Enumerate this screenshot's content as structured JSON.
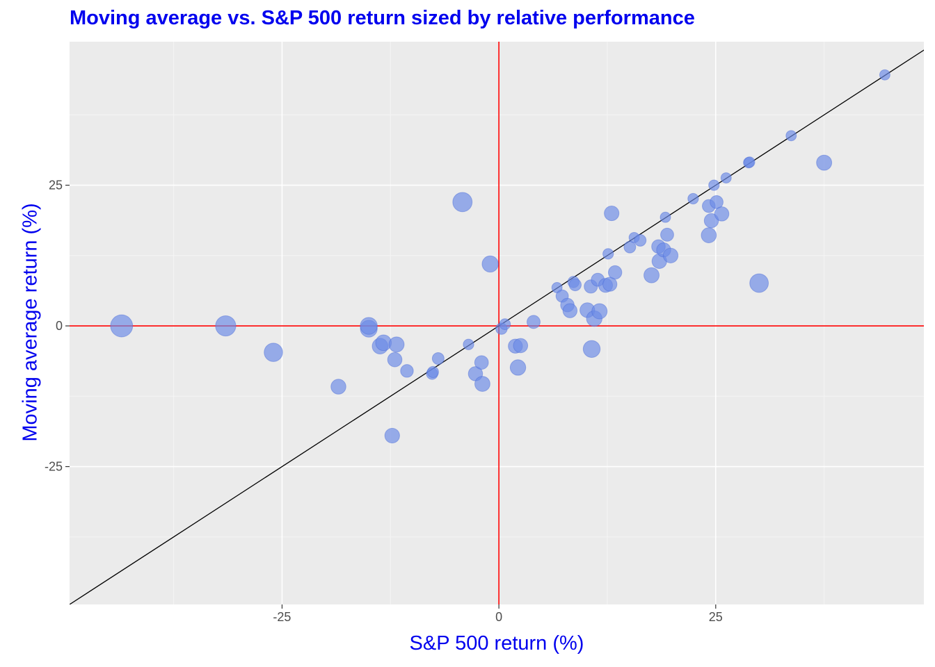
{
  "chart_data": {
    "type": "scatter",
    "title": "Moving average vs. S&P 500 return sized by relative performance",
    "xlabel": "S&P 500 return (%)",
    "ylabel": "Moving average return (%)",
    "xlim": [
      -49.5,
      49
    ],
    "ylim": [
      -49.5,
      50.5
    ],
    "x_ticks": [
      -25,
      0,
      25
    ],
    "y_ticks": [
      -25,
      0,
      25
    ],
    "x_tick_labels": [
      "-25",
      "0",
      "25"
    ],
    "y_tick_labels": [
      "-25",
      "0",
      "25"
    ],
    "grid": true,
    "reference_lines": {
      "vline_x": 0,
      "hline_y": 0,
      "diagonal": "y = x",
      "axis_line_color": "#ff0000",
      "diagonal_color": "#000000"
    },
    "point_color": "#6b8be6",
    "point_stroke": "#4a6bd8",
    "size_note": "size scales with |x - y|",
    "points": [
      {
        "x": -43.5,
        "y": 0.0
      },
      {
        "x": -31.5,
        "y": 0.0
      },
      {
        "x": -26.0,
        "y": -4.7
      },
      {
        "x": -18.5,
        "y": -10.8
      },
      {
        "x": -15.0,
        "y": -0.5
      },
      {
        "x": -15.0,
        "y": 0.0
      },
      {
        "x": -13.7,
        "y": -3.6
      },
      {
        "x": -13.3,
        "y": -3.0
      },
      {
        "x": -12.3,
        "y": -19.5
      },
      {
        "x": -12.0,
        "y": -6.0
      },
      {
        "x": -11.8,
        "y": -3.3
      },
      {
        "x": -10.6,
        "y": -8.0
      },
      {
        "x": -7.7,
        "y": -8.5
      },
      {
        "x": -7.6,
        "y": -8.2
      },
      {
        "x": -7.0,
        "y": -5.8
      },
      {
        "x": -4.2,
        "y": 22.0
      },
      {
        "x": -3.5,
        "y": -3.3
      },
      {
        "x": -2.7,
        "y": -8.5
      },
      {
        "x": -2.0,
        "y": -6.5
      },
      {
        "x": -1.9,
        "y": -10.3
      },
      {
        "x": -1.0,
        "y": 11.0
      },
      {
        "x": 0.3,
        "y": -0.5
      },
      {
        "x": 0.7,
        "y": 0.3
      },
      {
        "x": 1.9,
        "y": -3.6
      },
      {
        "x": 2.2,
        "y": -7.4
      },
      {
        "x": 2.5,
        "y": -3.5
      },
      {
        "x": 4.0,
        "y": 0.7
      },
      {
        "x": 6.7,
        "y": 6.8
      },
      {
        "x": 7.3,
        "y": 5.3
      },
      {
        "x": 7.9,
        "y": 3.7
      },
      {
        "x": 8.2,
        "y": 2.7
      },
      {
        "x": 8.6,
        "y": 7.8
      },
      {
        "x": 8.8,
        "y": 7.3
      },
      {
        "x": 10.2,
        "y": 2.8
      },
      {
        "x": 10.6,
        "y": 7.0
      },
      {
        "x": 10.7,
        "y": -4.1
      },
      {
        "x": 11.0,
        "y": 1.3
      },
      {
        "x": 11.4,
        "y": 8.2
      },
      {
        "x": 11.6,
        "y": 2.6
      },
      {
        "x": 12.3,
        "y": 7.2
      },
      {
        "x": 12.6,
        "y": 12.8
      },
      {
        "x": 12.8,
        "y": 7.4
      },
      {
        "x": 13.0,
        "y": 20.0
      },
      {
        "x": 13.4,
        "y": 9.5
      },
      {
        "x": 15.1,
        "y": 14.0
      },
      {
        "x": 15.6,
        "y": 15.7
      },
      {
        "x": 16.3,
        "y": 15.2
      },
      {
        "x": 17.6,
        "y": 9.0
      },
      {
        "x": 18.4,
        "y": 14.1
      },
      {
        "x": 18.5,
        "y": 11.5
      },
      {
        "x": 19.0,
        "y": 13.5
      },
      {
        "x": 19.2,
        "y": 19.3
      },
      {
        "x": 19.4,
        "y": 16.2
      },
      {
        "x": 19.8,
        "y": 12.5
      },
      {
        "x": 22.4,
        "y": 22.6
      },
      {
        "x": 24.2,
        "y": 21.3
      },
      {
        "x": 24.2,
        "y": 16.1
      },
      {
        "x": 24.5,
        "y": 18.7
      },
      {
        "x": 24.8,
        "y": 25.0
      },
      {
        "x": 25.1,
        "y": 22.0
      },
      {
        "x": 25.7,
        "y": 19.9
      },
      {
        "x": 26.2,
        "y": 26.3
      },
      {
        "x": 28.8,
        "y": 29.0
      },
      {
        "x": 28.9,
        "y": 29.1
      },
      {
        "x": 30.0,
        "y": 7.6
      },
      {
        "x": 33.7,
        "y": 33.8
      },
      {
        "x": 37.5,
        "y": 29.0
      },
      {
        "x": 44.5,
        "y": 44.6
      }
    ]
  }
}
